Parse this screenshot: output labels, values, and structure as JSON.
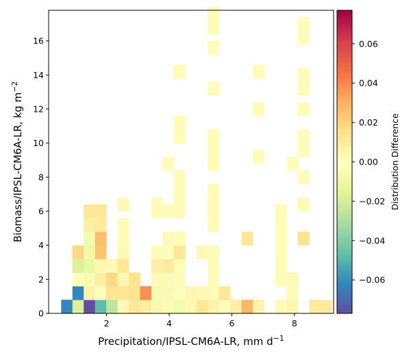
{
  "chart_data": {
    "type": "heatmap",
    "xlabel": "Precipitation/IPSL-CM6A-LR,  mm d",
    "xlabel_sup": "−1",
    "ylabel": "Biomass/IPSL-CM6A-LR,  kg m",
    "ylabel_sup": "−2",
    "colorbar_label": "Distribution Difference",
    "colormap": "Spectral_r",
    "xlim": [
      0.15,
      9.25
    ],
    "ylim": [
      0,
      17.8
    ],
    "clim": [
      -0.077,
      0.077
    ],
    "x_ticks": [
      2,
      4,
      6,
      8
    ],
    "x_tick_labels": [
      "2",
      "4",
      "6",
      "8"
    ],
    "y_ticks": [
      0,
      2,
      4,
      6,
      8,
      10,
      12,
      14,
      16
    ],
    "y_tick_labels": [
      "0",
      "2",
      "4",
      "6",
      "8",
      "10",
      "12",
      "14",
      "16"
    ],
    "colorbar_ticks": [
      -0.06,
      -0.04,
      -0.02,
      0.0,
      0.02,
      0.04,
      0.06
    ],
    "colorbar_tick_labels": [
      "−0.06",
      "−0.04",
      "−0.02",
      "0.00",
      "0.02",
      "0.04",
      "0.06"
    ],
    "bin_width_x": 0.36,
    "bin_height_y": 0.8,
    "cells": [
      [
        0.55,
        0.0,
        -0.062
      ],
      [
        0.91,
        0.0,
        -0.018
      ],
      [
        1.27,
        0.0,
        -0.078
      ],
      [
        1.63,
        0.0,
        -0.048
      ],
      [
        1.99,
        0.0,
        -0.026
      ],
      [
        2.35,
        0.0,
        0.003
      ],
      [
        2.71,
        0.0,
        0.012
      ],
      [
        3.07,
        0.0,
        0.009
      ],
      [
        3.43,
        0.0,
        0.004
      ],
      [
        3.79,
        0.0,
        -0.004
      ],
      [
        4.15,
        0.0,
        -0.008
      ],
      [
        4.51,
        0.0,
        0.003
      ],
      [
        4.87,
        0.0,
        0.012
      ],
      [
        5.23,
        0.0,
        0.006
      ],
      [
        5.59,
        0.0,
        0.002
      ],
      [
        5.95,
        0.0,
        0.008
      ],
      [
        6.31,
        0.0,
        0.028
      ],
      [
        6.67,
        0.0,
        0.006
      ],
      [
        7.39,
        0.0,
        0.002
      ],
      [
        7.75,
        0.0,
        0.004
      ],
      [
        8.47,
        0.0,
        0.01
      ],
      [
        8.83,
        0.0,
        0.01
      ],
      [
        0.91,
        0.8,
        -0.062
      ],
      [
        1.27,
        0.8,
        0.006
      ],
      [
        1.63,
        0.8,
        0.001
      ],
      [
        1.99,
        0.8,
        0.013
      ],
      [
        2.35,
        0.8,
        0.012
      ],
      [
        2.71,
        0.8,
        0.014
      ],
      [
        3.07,
        0.8,
        0.038
      ],
      [
        3.43,
        0.8,
        -0.006
      ],
      [
        3.79,
        0.8,
        0.003
      ],
      [
        4.15,
        0.8,
        0.001
      ],
      [
        4.51,
        0.8,
        0.004
      ],
      [
        4.87,
        0.8,
        0.003
      ],
      [
        5.23,
        0.8,
        0.002
      ],
      [
        5.59,
        0.8,
        0.012
      ],
      [
        7.75,
        0.8,
        0.002
      ],
      [
        0.91,
        1.6,
        0.001
      ],
      [
        1.27,
        1.6,
        -0.006
      ],
      [
        1.63,
        1.6,
        0.008
      ],
      [
        1.99,
        1.6,
        0.018
      ],
      [
        2.35,
        1.6,
        0.004
      ],
      [
        2.71,
        1.6,
        0.014
      ],
      [
        3.43,
        1.6,
        0.003
      ],
      [
        3.79,
        1.6,
        -0.004
      ],
      [
        4.15,
        1.6,
        0.002
      ],
      [
        5.23,
        1.6,
        0.002
      ],
      [
        7.39,
        1.6,
        0.002
      ],
      [
        7.75,
        1.6,
        0.003
      ],
      [
        0.91,
        2.4,
        -0.018
      ],
      [
        1.27,
        2.4,
        -0.012
      ],
      [
        1.63,
        2.4,
        0.004
      ],
      [
        1.99,
        2.4,
        0.003
      ],
      [
        2.35,
        2.4,
        0.012
      ],
      [
        3.43,
        2.4,
        0.008
      ],
      [
        3.79,
        2.4,
        0.01
      ],
      [
        4.15,
        2.4,
        -0.002
      ],
      [
        5.23,
        2.4,
        0.002
      ],
      [
        7.39,
        2.4,
        0.002
      ],
      [
        0.91,
        3.2,
        0.018
      ],
      [
        1.27,
        3.2,
        -0.01
      ],
      [
        1.63,
        3.2,
        0.024
      ],
      [
        2.35,
        3.2,
        0.003
      ],
      [
        3.43,
        3.2,
        0.002
      ],
      [
        3.79,
        3.2,
        0.002
      ],
      [
        4.15,
        3.2,
        0.012
      ],
      [
        4.87,
        3.2,
        0.003
      ],
      [
        5.23,
        3.2,
        0.002
      ],
      [
        7.39,
        3.2,
        0.002
      ],
      [
        1.27,
        4.0,
        -0.008
      ],
      [
        1.63,
        4.0,
        0.026
      ],
      [
        2.35,
        4.0,
        0.002
      ],
      [
        3.79,
        4.0,
        0.003
      ],
      [
        4.15,
        4.0,
        0.002
      ],
      [
        6.31,
        4.0,
        0.012
      ],
      [
        7.39,
        4.0,
        0.002
      ],
      [
        8.11,
        4.0,
        0.014
      ],
      [
        1.27,
        4.8,
        0.008
      ],
      [
        1.63,
        4.8,
        0.01
      ],
      [
        2.35,
        4.8,
        0.002
      ],
      [
        5.23,
        4.8,
        0.002
      ],
      [
        7.39,
        4.8,
        0.002
      ],
      [
        1.27,
        5.6,
        0.012
      ],
      [
        1.63,
        5.6,
        0.012
      ],
      [
        3.43,
        5.6,
        0.002
      ],
      [
        3.79,
        5.6,
        0.002
      ],
      [
        4.15,
        5.6,
        0.002
      ],
      [
        5.23,
        5.6,
        0.002
      ],
      [
        7.39,
        5.6,
        0.002
      ],
      [
        2.35,
        6.0,
        0.003
      ],
      [
        3.43,
        6.0,
        0.002
      ],
      [
        4.15,
        6.0,
        0.002
      ],
      [
        5.23,
        6.0,
        0.002
      ],
      [
        8.11,
        6.0,
        0.003
      ],
      [
        4.15,
        6.8,
        0.002
      ],
      [
        5.23,
        6.8,
        0.002
      ],
      [
        4.15,
        7.6,
        0.002
      ],
      [
        8.11,
        7.6,
        0.002
      ],
      [
        3.79,
        8.4,
        0.002
      ],
      [
        5.23,
        8.4,
        0.002
      ],
      [
        7.75,
        8.4,
        0.002
      ],
      [
        5.23,
        9.2,
        0.002
      ],
      [
        6.67,
        8.8,
        0.002
      ],
      [
        8.11,
        9.2,
        0.002
      ],
      [
        4.15,
        10.0,
        0.002
      ],
      [
        5.23,
        10.0,
        0.002
      ],
      [
        8.11,
        10.0,
        0.002
      ],
      [
        4.15,
        10.8,
        0.002
      ],
      [
        6.67,
        11.6,
        0.002
      ],
      [
        8.11,
        11.6,
        0.002
      ],
      [
        5.23,
        12.8,
        0.002
      ],
      [
        8.11,
        12.8,
        0.002
      ],
      [
        8.11,
        13.6,
        0.002
      ],
      [
        4.15,
        13.8,
        0.002
      ],
      [
        6.67,
        13.8,
        0.002
      ],
      [
        5.23,
        15.2,
        0.002
      ],
      [
        5.23,
        16.4,
        0.002
      ],
      [
        8.11,
        15.8,
        0.002
      ],
      [
        8.11,
        16.6,
        0.002
      ],
      [
        5.23,
        17.2,
        0.002
      ]
    ]
  }
}
